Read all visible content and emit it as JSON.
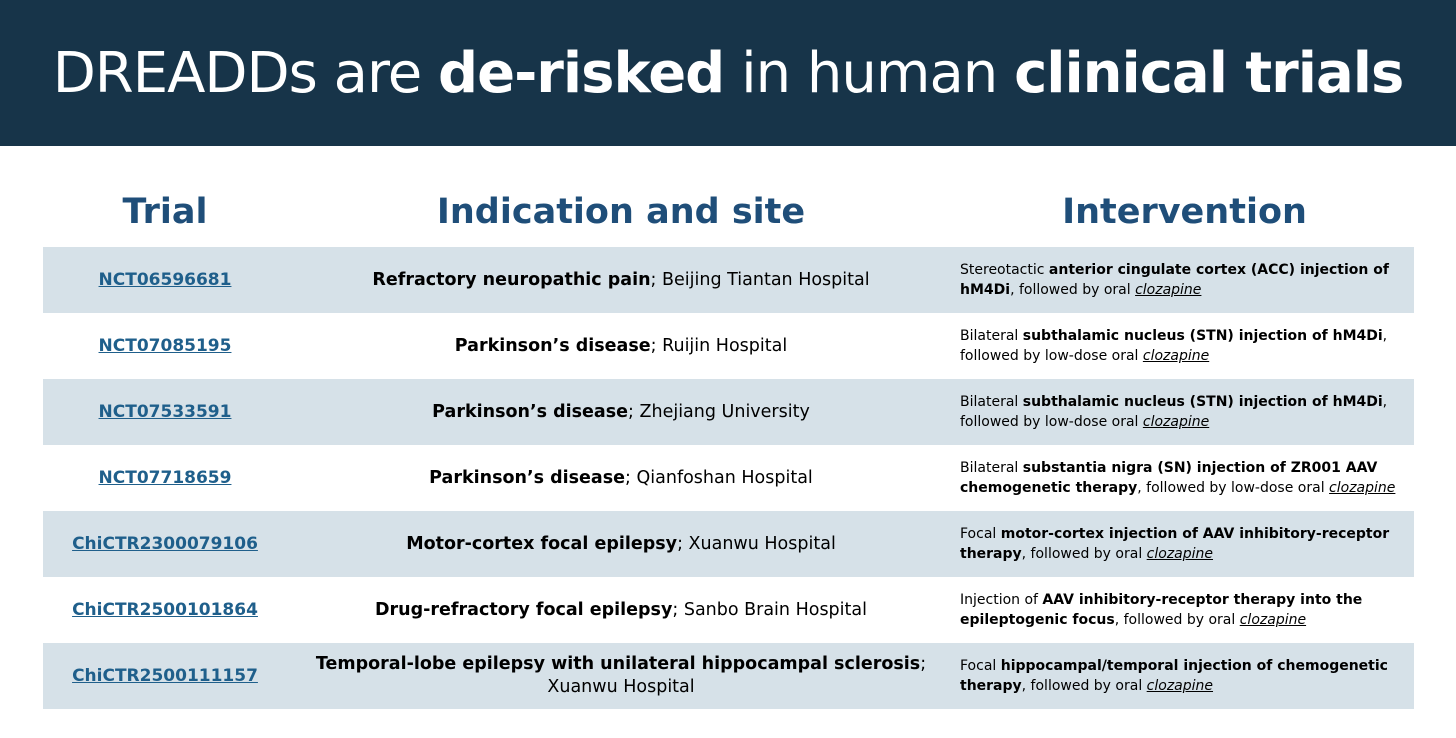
{
  "title": {
    "p1": "DREADDs are ",
    "b1": "de-risked",
    "p2": " in human ",
    "b2": "clinical trials"
  },
  "columns": {
    "trial": "Trial",
    "indication": "Indication and site",
    "intervention": "Intervention"
  },
  "colors": {
    "banner": "#173449",
    "header_text": "#1f4e79",
    "link": "#1f5f8b",
    "shaded_row": "#d6e1e8"
  },
  "rows": [
    {
      "trial": "NCT06596681",
      "ind_bold": "Refractory neuropathic pain",
      "ind_rest": "; Beijing Tiantan Hospital",
      "int_pre": "Stereotactic ",
      "int_bold": "anterior cingulate cortex (ACC) injection of hM4Di",
      "int_post": ", followed by oral ",
      "int_drug": "clozapine"
    },
    {
      "trial": "NCT07085195",
      "ind_bold": "Parkinson’s disease",
      "ind_rest": "; Ruijin Hospital",
      "int_pre": "Bilateral ",
      "int_bold": "subthalamic nucleus (STN) injection of hM4Di",
      "int_post": ", followed by low-dose oral ",
      "int_drug": "clozapine"
    },
    {
      "trial": "NCT07533591",
      "ind_bold": "Parkinson’s disease",
      "ind_rest": "; Zhejiang University",
      "int_pre": "Bilateral ",
      "int_bold": "subthalamic nucleus (STN) injection of hM4Di",
      "int_post": ", followed by low-dose oral ",
      "int_drug": "clozapine"
    },
    {
      "trial": "NCT07718659",
      "ind_bold": "Parkinson’s disease",
      "ind_rest": "; Qianfoshan Hospital",
      "int_pre": "Bilateral ",
      "int_bold": "substantia nigra (SN) injection of ZR001 AAV chemogenetic therapy",
      "int_post": ", followed by low-dose oral ",
      "int_drug": "clozapine"
    },
    {
      "trial": "ChiCTR2300079106",
      "ind_bold": "Motor-cortex focal epilepsy",
      "ind_rest": "; Xuanwu Hospital",
      "int_pre": "Focal ",
      "int_bold": "motor-cortex injection of AAV inhibitory-receptor therapy",
      "int_post": ", followed by oral ",
      "int_drug": "clozapine"
    },
    {
      "trial": "ChiCTR2500101864",
      "ind_bold": "Drug-refractory focal epilepsy",
      "ind_rest": "; Sanbo Brain Hospital",
      "int_pre": "Injection of ",
      "int_bold": "AAV inhibitory-receptor therapy into the epileptogenic focus",
      "int_post": ", followed by oral ",
      "int_drug": "clozapine"
    },
    {
      "trial": "ChiCTR2500111157",
      "ind_bold": "Temporal-lobe epilepsy with unilateral hippocampal sclerosis",
      "ind_rest": "; Xuanwu Hospital",
      "int_pre": "Focal ",
      "int_bold": "hippocampal/temporal injection of chemogenetic therapy",
      "int_post": ", followed by oral ",
      "int_drug": "clozapine"
    }
  ]
}
